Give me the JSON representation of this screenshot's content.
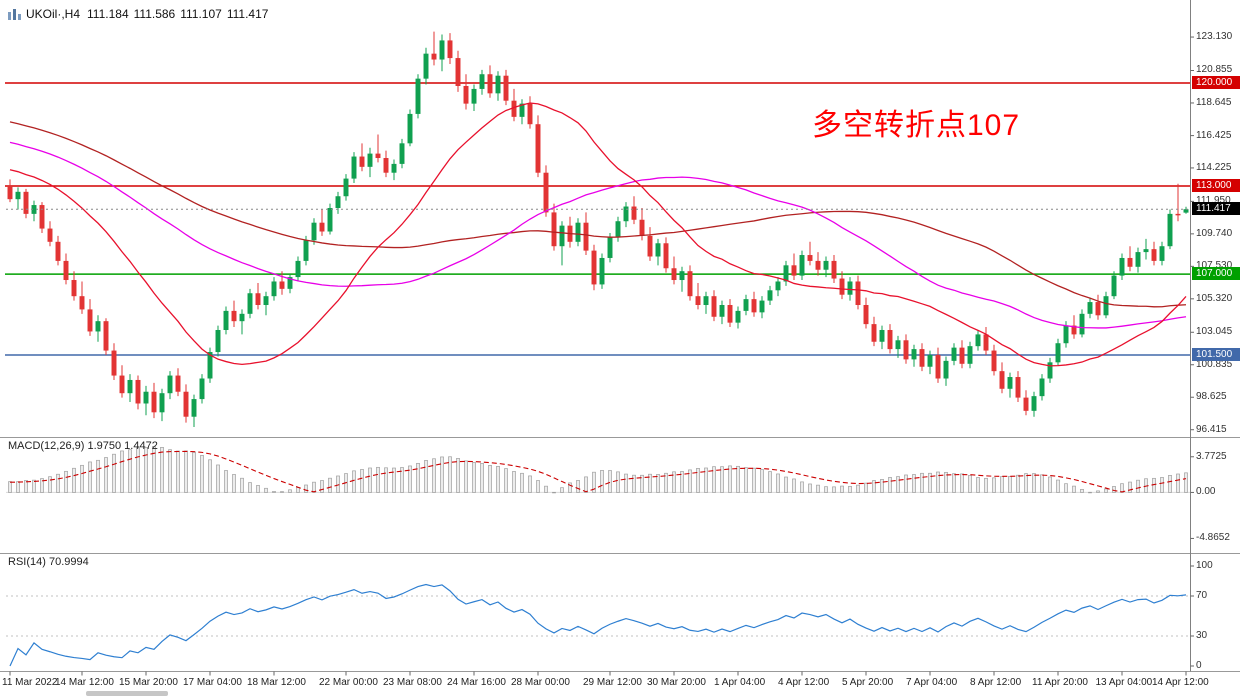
{
  "header": {
    "symbol_period": "UKOil·,H4",
    "ohlc": {
      "open": "111.184",
      "high": "111.586",
      "low": "111.107",
      "close": "111.417"
    }
  },
  "annotation": {
    "text": "多空转折点107",
    "color": "#FF0000"
  },
  "colors": {
    "up": "#10A050",
    "down": "#E23434",
    "axis_text": "#333333",
    "separator": "#999999",
    "last_badge_bg": "#000000"
  },
  "chart_data": {
    "type": "candlestick",
    "symbol": "UKOil",
    "timeframe": "H4",
    "price_panel": {
      "ylim": [
        95.92,
        124.97
      ],
      "ticks": [
        {
          "v": 123.13,
          "label": "123.130"
        },
        {
          "v": 120.855,
          "label": "120.855"
        },
        {
          "v": 118.645,
          "label": "118.645"
        },
        {
          "v": 116.425,
          "label": "116.425"
        },
        {
          "v": 114.225,
          "label": "114.225"
        },
        {
          "v": 111.95,
          "label": "111.950"
        },
        {
          "v": 109.74,
          "label": "109.740"
        },
        {
          "v": 107.53,
          "label": "107.530"
        },
        {
          "v": 105.32,
          "label": "105.320"
        },
        {
          "v": 103.045,
          "label": "103.045"
        },
        {
          "v": 100.835,
          "label": "100.835"
        },
        {
          "v": 98.625,
          "label": "98.625"
        },
        {
          "v": 96.415,
          "label": "96.415"
        }
      ],
      "levels": [
        {
          "value": 120.0,
          "label": "120.000",
          "color": "#D40000"
        },
        {
          "value": 113.0,
          "label": "113.000",
          "color": "#D40000"
        },
        {
          "value": 107.0,
          "label": "107.000",
          "color": "#00A000"
        },
        {
          "value": 101.5,
          "label": "101.500",
          "color": "#4169AA"
        }
      ],
      "last_price": {
        "value": 111.417,
        "label": "111.417"
      },
      "moving_averages": [
        {
          "period": 72,
          "color": "#B22222"
        },
        {
          "period": 50,
          "color": "#E800E8"
        },
        {
          "period": 21,
          "color": "#E8112D"
        }
      ],
      "warmup": {
        "start": 122.0,
        "end": 113.0,
        "count": 72
      },
      "candles": [
        [
          113.0,
          113.45,
          111.9,
          112.1
        ],
        [
          112.1,
          112.9,
          111.4,
          112.6
        ],
        [
          112.6,
          112.8,
          110.8,
          111.1
        ],
        [
          111.1,
          112.0,
          110.6,
          111.7
        ],
        [
          111.7,
          111.9,
          109.8,
          110.1
        ],
        [
          110.1,
          110.6,
          108.9,
          109.2
        ],
        [
          109.2,
          109.6,
          107.6,
          107.9
        ],
        [
          107.9,
          108.4,
          106.3,
          106.6
        ],
        [
          106.6,
          107.2,
          105.2,
          105.5
        ],
        [
          105.5,
          106.5,
          104.3,
          104.6
        ],
        [
          104.6,
          105.3,
          102.8,
          103.1
        ],
        [
          103.1,
          104.2,
          102.4,
          103.8
        ],
        [
          103.8,
          104.0,
          101.5,
          101.8
        ],
        [
          101.8,
          102.3,
          99.8,
          100.1
        ],
        [
          100.1,
          100.8,
          98.6,
          98.9
        ],
        [
          98.9,
          100.2,
          98.3,
          99.8
        ],
        [
          99.8,
          100.1,
          97.8,
          98.2
        ],
        [
          98.2,
          99.4,
          97.4,
          99.0
        ],
        [
          99.0,
          99.6,
          97.2,
          97.6
        ],
        [
          97.6,
          99.2,
          97.0,
          98.9
        ],
        [
          98.9,
          100.4,
          98.5,
          100.1
        ],
        [
          100.1,
          100.6,
          98.7,
          99.0
        ],
        [
          99.0,
          99.5,
          96.9,
          97.3
        ],
        [
          97.3,
          98.8,
          96.6,
          98.5
        ],
        [
          98.5,
          100.2,
          98.2,
          99.9
        ],
        [
          99.9,
          102.0,
          99.6,
          101.7
        ],
        [
          101.7,
          103.5,
          101.4,
          103.2
        ],
        [
          103.2,
          104.8,
          102.9,
          104.5
        ],
        [
          104.5,
          105.2,
          103.4,
          103.8
        ],
        [
          103.8,
          104.6,
          102.9,
          104.3
        ],
        [
          104.3,
          106.0,
          104.0,
          105.7
        ],
        [
          105.7,
          106.4,
          104.6,
          104.9
        ],
        [
          104.9,
          105.8,
          104.2,
          105.5
        ],
        [
          105.5,
          106.8,
          105.2,
          106.5
        ],
        [
          106.5,
          107.2,
          105.6,
          106.0
        ],
        [
          106.0,
          107.0,
          105.7,
          106.8
        ],
        [
          106.8,
          108.2,
          106.5,
          107.9
        ],
        [
          107.9,
          109.6,
          107.6,
          109.3
        ],
        [
          109.3,
          110.8,
          109.0,
          110.5
        ],
        [
          110.5,
          111.4,
          109.6,
          109.9
        ],
        [
          109.9,
          111.8,
          109.7,
          111.5
        ],
        [
          111.5,
          112.6,
          111.1,
          112.3
        ],
        [
          112.3,
          113.8,
          112.0,
          113.5
        ],
        [
          113.5,
          115.3,
          113.2,
          115.0
        ],
        [
          115.0,
          115.9,
          114.0,
          114.3
        ],
        [
          114.3,
          115.6,
          113.6,
          115.2
        ],
        [
          115.2,
          116.5,
          114.6,
          114.9
        ],
        [
          114.9,
          115.4,
          113.6,
          113.9
        ],
        [
          113.9,
          114.8,
          113.4,
          114.5
        ],
        [
          114.5,
          116.2,
          114.2,
          115.9
        ],
        [
          115.9,
          118.2,
          115.7,
          117.9
        ],
        [
          117.9,
          120.6,
          117.6,
          120.3
        ],
        [
          120.3,
          122.4,
          119.9,
          122.0
        ],
        [
          122.0,
          123.5,
          121.2,
          121.6
        ],
        [
          121.6,
          123.3,
          120.8,
          122.9
        ],
        [
          122.9,
          123.4,
          121.3,
          121.7
        ],
        [
          121.7,
          122.2,
          119.4,
          119.8
        ],
        [
          119.8,
          120.6,
          118.2,
          118.6
        ],
        [
          118.6,
          119.9,
          118.1,
          119.6
        ],
        [
          119.6,
          120.9,
          119.2,
          120.6
        ],
        [
          120.6,
          121.2,
          119.0,
          119.3
        ],
        [
          119.3,
          120.8,
          118.8,
          120.5
        ],
        [
          120.5,
          120.9,
          118.5,
          118.8
        ],
        [
          118.8,
          119.6,
          117.4,
          117.7
        ],
        [
          117.7,
          118.9,
          117.2,
          118.6
        ],
        [
          118.6,
          119.1,
          116.9,
          117.2
        ],
        [
          117.2,
          117.8,
          113.6,
          113.9
        ],
        [
          113.9,
          114.4,
          110.9,
          111.2
        ],
        [
          111.2,
          111.8,
          108.6,
          108.9
        ],
        [
          108.9,
          110.6,
          107.6,
          110.3
        ],
        [
          110.3,
          110.9,
          108.8,
          109.2
        ],
        [
          109.2,
          110.8,
          108.9,
          110.5
        ],
        [
          110.5,
          111.2,
          108.3,
          108.6
        ],
        [
          108.6,
          109.0,
          105.9,
          106.3
        ],
        [
          106.3,
          108.4,
          106.0,
          108.1
        ],
        [
          108.1,
          109.8,
          107.8,
          109.5
        ],
        [
          109.5,
          110.9,
          109.2,
          110.6
        ],
        [
          110.6,
          111.9,
          110.2,
          111.6
        ],
        [
          111.6,
          112.3,
          110.4,
          110.7
        ],
        [
          110.7,
          111.5,
          109.3,
          109.6
        ],
        [
          109.6,
          110.2,
          107.9,
          108.2
        ],
        [
          108.2,
          109.4,
          107.6,
          109.1
        ],
        [
          109.1,
          109.5,
          107.1,
          107.4
        ],
        [
          107.4,
          108.2,
          106.3,
          106.6
        ],
        [
          106.6,
          107.5,
          105.8,
          107.2
        ],
        [
          107.2,
          107.6,
          105.2,
          105.5
        ],
        [
          105.5,
          106.4,
          104.6,
          104.9
        ],
        [
          104.9,
          105.8,
          104.3,
          105.5
        ],
        [
          105.5,
          105.9,
          103.8,
          104.1
        ],
        [
          104.1,
          105.2,
          103.6,
          104.9
        ],
        [
          104.9,
          105.3,
          103.4,
          103.7
        ],
        [
          103.7,
          104.8,
          103.3,
          104.5
        ],
        [
          104.5,
          105.6,
          104.2,
          105.3
        ],
        [
          105.3,
          105.8,
          104.1,
          104.4
        ],
        [
          104.4,
          105.5,
          104.0,
          105.2
        ],
        [
          105.2,
          106.2,
          104.9,
          105.9
        ],
        [
          105.9,
          106.8,
          105.5,
          106.5
        ],
        [
          106.5,
          107.9,
          106.2,
          107.6
        ],
        [
          107.6,
          108.4,
          106.6,
          106.9
        ],
        [
          106.9,
          108.6,
          106.6,
          108.3
        ],
        [
          108.3,
          109.2,
          107.6,
          107.9
        ],
        [
          107.9,
          108.5,
          106.9,
          107.3
        ],
        [
          107.3,
          108.2,
          106.8,
          107.9
        ],
        [
          107.9,
          108.3,
          106.4,
          106.7
        ],
        [
          106.7,
          107.2,
          105.3,
          105.6
        ],
        [
          105.6,
          106.8,
          105.2,
          106.5
        ],
        [
          106.5,
          106.9,
          104.6,
          104.9
        ],
        [
          104.9,
          105.4,
          103.3,
          103.6
        ],
        [
          103.6,
          104.1,
          102.1,
          102.4
        ],
        [
          102.4,
          103.5,
          101.9,
          103.2
        ],
        [
          103.2,
          103.6,
          101.6,
          101.9
        ],
        [
          101.9,
          102.8,
          101.3,
          102.5
        ],
        [
          102.5,
          102.9,
          100.9,
          101.2
        ],
        [
          101.2,
          102.2,
          100.7,
          101.9
        ],
        [
          101.9,
          102.3,
          100.4,
          100.7
        ],
        [
          100.7,
          101.8,
          100.2,
          101.5
        ],
        [
          101.5,
          102.0,
          99.6,
          99.9
        ],
        [
          99.9,
          101.4,
          99.4,
          101.1
        ],
        [
          101.1,
          102.3,
          100.8,
          102.0
        ],
        [
          102.0,
          102.5,
          100.6,
          100.9
        ],
        [
          100.9,
          102.4,
          100.6,
          102.1
        ],
        [
          102.1,
          103.2,
          101.8,
          102.9
        ],
        [
          102.9,
          103.4,
          101.5,
          101.8
        ],
        [
          101.8,
          102.2,
          100.1,
          100.4
        ],
        [
          100.4,
          101.0,
          98.9,
          99.2
        ],
        [
          99.2,
          100.3,
          98.6,
          100.0
        ],
        [
          100.0,
          100.4,
          98.3,
          98.6
        ],
        [
          98.6,
          99.1,
          97.4,
          97.7
        ],
        [
          97.7,
          99.0,
          97.3,
          98.7
        ],
        [
          98.7,
          100.2,
          98.4,
          99.9
        ],
        [
          99.9,
          101.3,
          99.6,
          101.0
        ],
        [
          101.0,
          102.6,
          100.8,
          102.3
        ],
        [
          102.3,
          103.8,
          102.0,
          103.5
        ],
        [
          103.5,
          104.2,
          102.6,
          102.9
        ],
        [
          102.9,
          104.6,
          102.7,
          104.3
        ],
        [
          104.3,
          105.4,
          104.0,
          105.1
        ],
        [
          105.1,
          105.6,
          103.9,
          104.2
        ],
        [
          104.2,
          105.8,
          104.0,
          105.5
        ],
        [
          105.5,
          107.2,
          105.3,
          106.9
        ],
        [
          106.9,
          108.4,
          106.6,
          108.1
        ],
        [
          108.1,
          108.9,
          107.2,
          107.5
        ],
        [
          107.5,
          108.8,
          107.1,
          108.5
        ],
        [
          108.5,
          109.4,
          108.0,
          108.7
        ],
        [
          108.7,
          109.2,
          107.6,
          107.9
        ],
        [
          107.9,
          109.2,
          107.6,
          108.9
        ],
        [
          108.9,
          111.4,
          108.7,
          111.1
        ],
        [
          111.1,
          113.15,
          110.6,
          111.0
        ],
        [
          111.184,
          111.586,
          111.107,
          111.417
        ]
      ]
    },
    "macd_panel": {
      "label": "MACD(12,26,9) 1.9750 1.4472",
      "params": [
        12,
        26,
        9
      ],
      "ticks": [
        {
          "v": 3.7725,
          "label": "3.7725"
        },
        {
          "v": 0,
          "label": "0.00"
        },
        {
          "v": -4.8652,
          "label": "-4.8652"
        }
      ],
      "ylim": [
        -6.3,
        4.7
      ],
      "histogram_fill": "#ECECEC",
      "histogram_stroke": "#9E9E9E",
      "signal_color": "#CC0000"
    },
    "rsi_panel": {
      "label": "RSI(14) 70.9994",
      "period": 14,
      "ticks": [
        {
          "v": 100,
          "label": "100"
        },
        {
          "v": 70,
          "label": "70"
        },
        {
          "v": 30,
          "label": "30"
        },
        {
          "v": 0,
          "label": "0"
        }
      ],
      "levels": [
        70,
        30
      ],
      "ylim": [
        0,
        100
      ],
      "line_color": "#2E7FD1"
    },
    "time_axis": {
      "labels": [
        {
          "text": "11 Mar 2022",
          "bar": 0
        },
        {
          "text": "14 Mar 12:00",
          "bar": 9
        },
        {
          "text": "15 Mar 20:00",
          "bar": 17
        },
        {
          "text": "17 Mar 04:00",
          "bar": 25
        },
        {
          "text": "18 Mar 12:00",
          "bar": 33
        },
        {
          "text": "22 Mar 00:00",
          "bar": 42
        },
        {
          "text": "23 Mar 08:00",
          "bar": 50
        },
        {
          "text": "24 Mar 16:00",
          "bar": 58
        },
        {
          "text": "28 Mar 00:00",
          "bar": 66
        },
        {
          "text": "29 Mar 12:00",
          "bar": 75
        },
        {
          "text": "30 Mar 20:00",
          "bar": 83
        },
        {
          "text": "1 Apr 04:00",
          "bar": 91
        },
        {
          "text": "4 Apr 12:00",
          "bar": 99
        },
        {
          "text": "5 Apr 20:00",
          "bar": 107
        },
        {
          "text": "7 Apr 04:00",
          "bar": 115
        },
        {
          "text": "8 Apr 12:00",
          "bar": 123
        },
        {
          "text": "11 Apr 20:00",
          "bar": 131
        },
        {
          "text": "13 Apr 04:00",
          "bar": 139
        },
        {
          "text": "14 Apr 12:00",
          "bar": 147
        }
      ]
    }
  }
}
